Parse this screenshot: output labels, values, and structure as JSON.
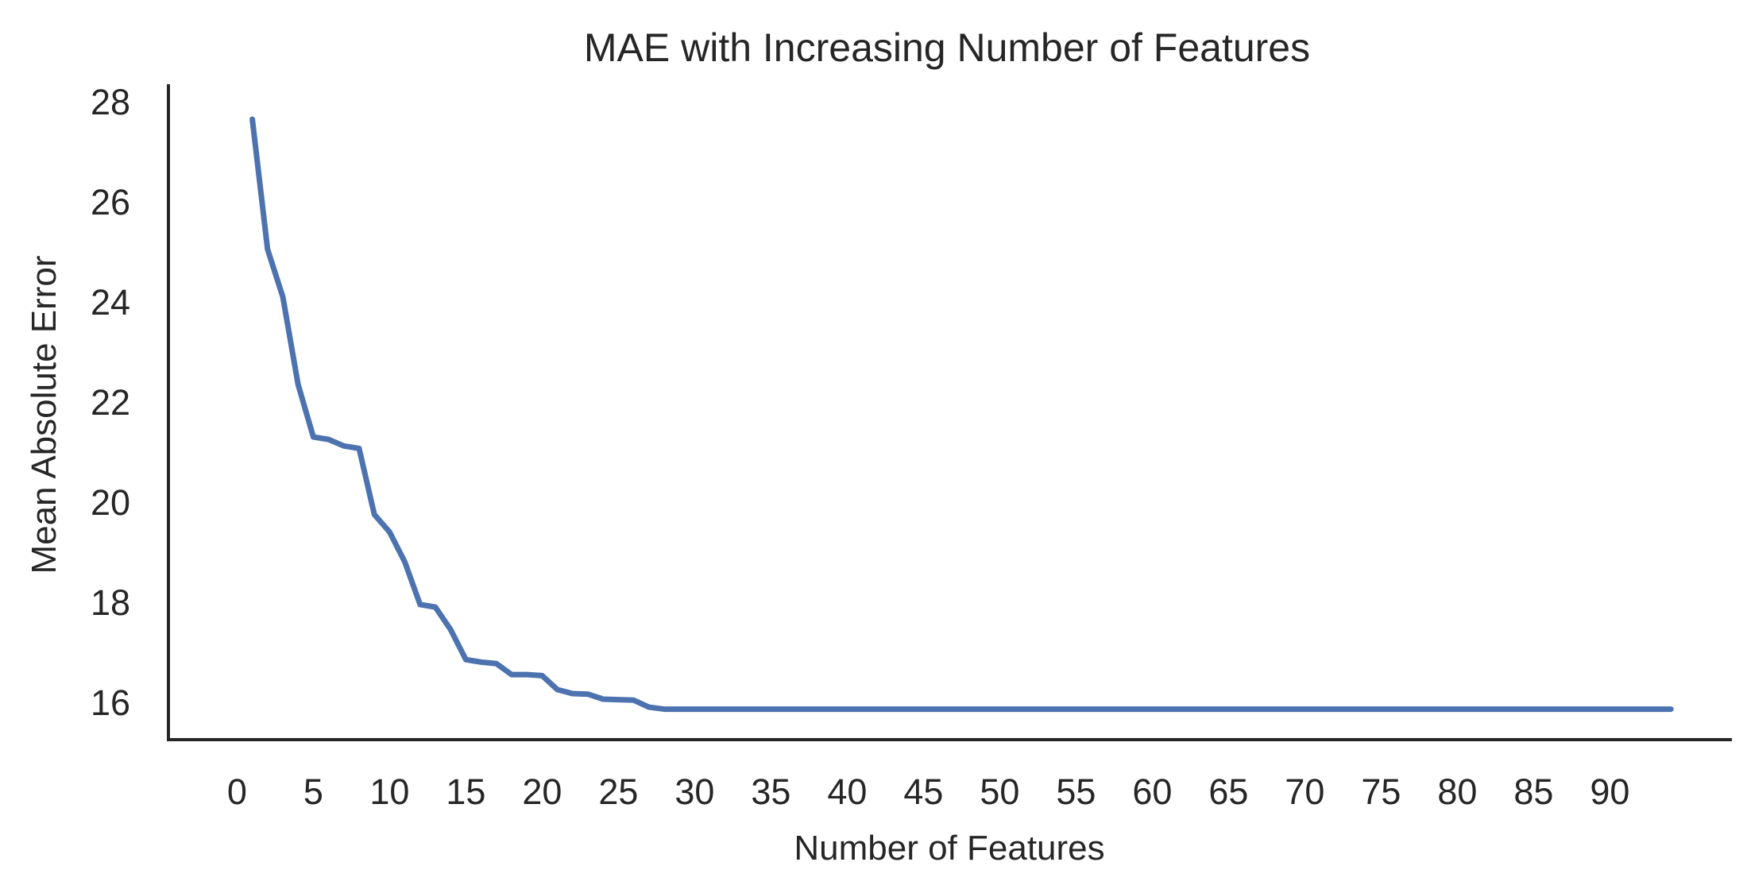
{
  "colors": {
    "line": "#4c72b0",
    "axis": "#262626",
    "text": "#262626",
    "background": "#ffffff"
  },
  "chart_data": {
    "type": "line",
    "title": "MAE with Increasing Number of Features",
    "xlabel": "Number of Features",
    "ylabel": "Mean Absolute Error",
    "xlim": [
      -4.5,
      98
    ],
    "ylim": [
      15.25,
      28.35
    ],
    "xticks": [
      0,
      5,
      10,
      15,
      20,
      25,
      30,
      35,
      40,
      45,
      50,
      55,
      60,
      65,
      70,
      75,
      80,
      85,
      90
    ],
    "yticks": [
      16,
      18,
      20,
      22,
      24,
      26,
      28
    ],
    "grid": false,
    "legend": "none",
    "series": [
      {
        "x": [
          1,
          2,
          3,
          4,
          5,
          6,
          7,
          8,
          9,
          10,
          11,
          12,
          13,
          14,
          15,
          16,
          17,
          18,
          19,
          20,
          21,
          22,
          23,
          24,
          25,
          26,
          27,
          28,
          29,
          30,
          31,
          32,
          33,
          34,
          35,
          36,
          37,
          38,
          39,
          40,
          41,
          42,
          43,
          44,
          45,
          46,
          47,
          48,
          49,
          50,
          51,
          52,
          53,
          54,
          55,
          56,
          57,
          58,
          59,
          60,
          61,
          62,
          63,
          64,
          65,
          66,
          67,
          68,
          69,
          70,
          71,
          72,
          73,
          74,
          75,
          76,
          77,
          78,
          79,
          80,
          81,
          82,
          83,
          84,
          85,
          86,
          87,
          88,
          89,
          90,
          91,
          92,
          93,
          94
        ],
        "values": [
          27.65,
          25.05,
          24.1,
          22.35,
          21.3,
          21.25,
          21.12,
          21.07,
          19.75,
          19.4,
          18.8,
          17.95,
          17.9,
          17.45,
          16.85,
          16.8,
          16.77,
          16.55,
          16.55,
          16.53,
          16.25,
          16.17,
          16.16,
          16.06,
          16.05,
          16.04,
          15.9,
          15.86,
          15.86,
          15.86,
          15.86,
          15.86,
          15.86,
          15.86,
          15.86,
          15.86,
          15.86,
          15.86,
          15.86,
          15.86,
          15.86,
          15.86,
          15.86,
          15.86,
          15.86,
          15.86,
          15.86,
          15.86,
          15.86,
          15.86,
          15.86,
          15.86,
          15.86,
          15.86,
          15.86,
          15.86,
          15.86,
          15.86,
          15.86,
          15.86,
          15.86,
          15.86,
          15.86,
          15.86,
          15.86,
          15.86,
          15.86,
          15.86,
          15.86,
          15.86,
          15.86,
          15.86,
          15.86,
          15.86,
          15.86,
          15.86,
          15.86,
          15.86,
          15.86,
          15.86,
          15.86,
          15.86,
          15.86,
          15.86,
          15.86,
          15.86,
          15.86,
          15.86,
          15.86,
          15.86,
          15.86,
          15.86,
          15.86,
          15.86
        ]
      }
    ]
  }
}
